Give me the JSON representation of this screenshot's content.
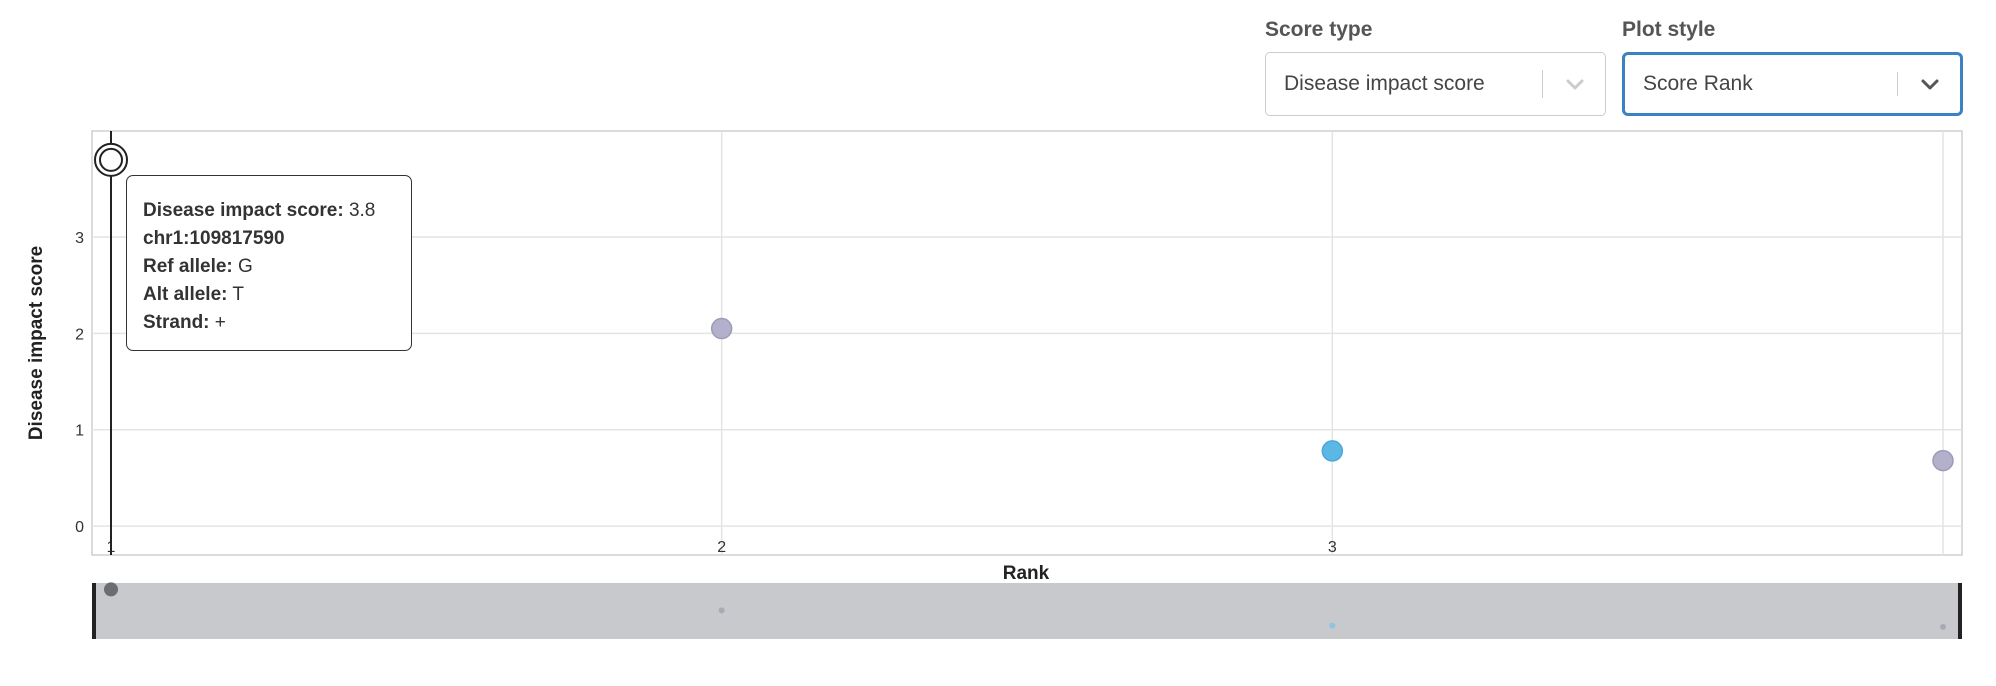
{
  "controls": {
    "score_type": {
      "label": "Score type",
      "value": "Disease impact score"
    },
    "plot_style": {
      "label": "Plot style",
      "value": "Score Rank"
    }
  },
  "tooltip": {
    "score_label": "Disease impact score:",
    "score_value": "3.8",
    "locus": "chr1:109817590",
    "ref_label": "Ref allele:",
    "ref_value": "G",
    "alt_label": "Alt allele:",
    "alt_value": "T",
    "strand_label": "Strand:",
    "strand_value": "+"
  },
  "colors": {
    "gray_point": "#b3b0cc",
    "blue_point": "#5bb8e6",
    "grid": "#e4e4e4",
    "navigator_bg": "#c7c9cc"
  },
  "chart_data": {
    "type": "scatter",
    "xlabel": "Rank",
    "ylabel": "Disease impact score",
    "x_ticks": [
      1,
      2,
      3
    ],
    "y_ticks": [
      0,
      1,
      2,
      3
    ],
    "xlim": [
      1,
      4
    ],
    "ylim": [
      -0.3,
      4.1
    ],
    "grid": true,
    "points": [
      {
        "x": 1,
        "y": 3.8,
        "color": "hover",
        "selected": true
      },
      {
        "x": 2,
        "y": 2.05,
        "color": "gray"
      },
      {
        "x": 3,
        "y": 0.78,
        "color": "blue"
      },
      {
        "x": 4,
        "y": 0.68,
        "color": "gray"
      }
    ]
  }
}
